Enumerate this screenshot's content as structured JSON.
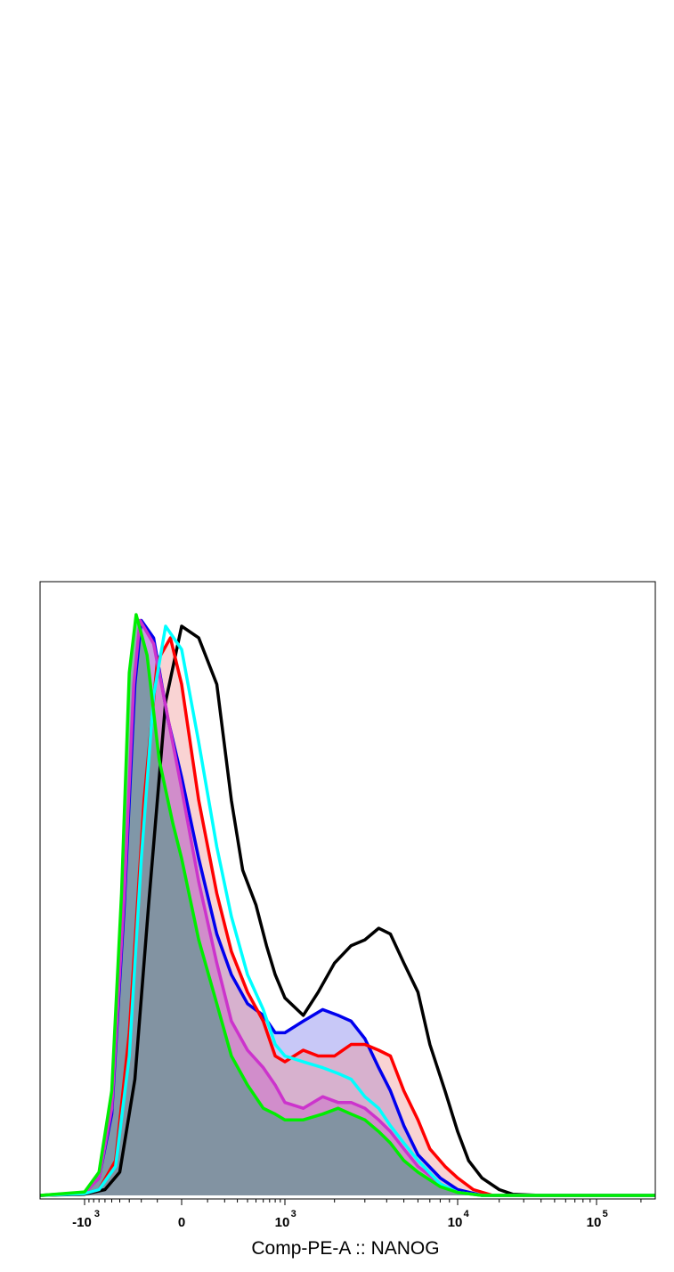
{
  "chart_data": {
    "type": "area",
    "xlabel": "Comp-PE-A :: NANOG",
    "ylabel": "",
    "title": "",
    "x_scale": "biexponential",
    "xlim": [
      -1500,
      250000
    ],
    "ylim": [
      0,
      100
    ],
    "grid": false,
    "legend": "none",
    "x_ticks": [
      {
        "value": -1000,
        "base": "-10",
        "exp": "3"
      },
      {
        "value": 0,
        "base": "0",
        "exp": ""
      },
      {
        "value": 1000,
        "base": "10",
        "exp": "3"
      },
      {
        "value": 10000,
        "base": "10",
        "exp": "4"
      },
      {
        "value": 100000,
        "base": "10",
        "exp": "5"
      }
    ],
    "series": [
      {
        "color": "#000000",
        "fill": "none",
        "points": [
          [
            -1500,
            0
          ],
          [
            -1000,
            0.2
          ],
          [
            -600,
            1
          ],
          [
            -400,
            4
          ],
          [
            -250,
            20
          ],
          [
            -150,
            50
          ],
          [
            -60,
            85
          ],
          [
            0,
            98
          ],
          [
            60,
            96
          ],
          [
            150,
            88
          ],
          [
            250,
            68
          ],
          [
            350,
            56
          ],
          [
            500,
            50
          ],
          [
            650,
            43
          ],
          [
            800,
            38
          ],
          [
            1000,
            34
          ],
          [
            1300,
            31
          ],
          [
            1600,
            35
          ],
          [
            2000,
            40
          ],
          [
            2500,
            43
          ],
          [
            3000,
            44
          ],
          [
            3600,
            46
          ],
          [
            4200,
            45
          ],
          [
            5000,
            40
          ],
          [
            6000,
            35
          ],
          [
            7000,
            26
          ],
          [
            8500,
            18
          ],
          [
            10000,
            11
          ],
          [
            12000,
            6
          ],
          [
            15000,
            3
          ],
          [
            20000,
            1
          ],
          [
            25000,
            0.2
          ],
          [
            40000,
            0
          ],
          [
            250000,
            0
          ]
        ]
      },
      {
        "color": "#0000ee",
        "fill": "rgba(110,110,235,0.38)",
        "points": [
          [
            -1500,
            0
          ],
          [
            -1000,
            0.5
          ],
          [
            -700,
            3
          ],
          [
            -500,
            14
          ],
          [
            -350,
            50
          ],
          [
            -250,
            88
          ],
          [
            -200,
            99
          ],
          [
            -120,
            96
          ],
          [
            -50,
            82
          ],
          [
            0,
            72
          ],
          [
            60,
            58
          ],
          [
            150,
            45
          ],
          [
            250,
            38
          ],
          [
            400,
            33
          ],
          [
            600,
            31
          ],
          [
            800,
            28
          ],
          [
            1000,
            28
          ],
          [
            1300,
            30
          ],
          [
            1700,
            32
          ],
          [
            2100,
            31
          ],
          [
            2500,
            30
          ],
          [
            3000,
            27
          ],
          [
            3600,
            22
          ],
          [
            4200,
            18
          ],
          [
            5000,
            12
          ],
          [
            6000,
            7
          ],
          [
            8000,
            3
          ],
          [
            10000,
            1
          ],
          [
            15000,
            0
          ],
          [
            250000,
            0
          ]
        ]
      },
      {
        "color": "#ff0000",
        "fill": "rgba(240,140,140,0.38)",
        "points": [
          [
            -1500,
            0
          ],
          [
            -1000,
            0.3
          ],
          [
            -700,
            1
          ],
          [
            -450,
            6
          ],
          [
            -300,
            28
          ],
          [
            -180,
            68
          ],
          [
            -100,
            92
          ],
          [
            -40,
            96
          ],
          [
            0,
            88
          ],
          [
            60,
            68
          ],
          [
            150,
            52
          ],
          [
            250,
            42
          ],
          [
            400,
            35
          ],
          [
            600,
            30
          ],
          [
            800,
            24
          ],
          [
            1000,
            23
          ],
          [
            1300,
            25
          ],
          [
            1600,
            24
          ],
          [
            2000,
            24
          ],
          [
            2500,
            26
          ],
          [
            3000,
            26
          ],
          [
            3600,
            25
          ],
          [
            4200,
            24
          ],
          [
            5000,
            18
          ],
          [
            6000,
            13
          ],
          [
            7000,
            8
          ],
          [
            8500,
            5
          ],
          [
            10000,
            3
          ],
          [
            13000,
            1
          ],
          [
            18000,
            0
          ],
          [
            250000,
            0
          ]
        ]
      },
      {
        "color": "#cc33cc",
        "fill": "rgba(200,90,200,0.42)",
        "points": [
          [
            -1500,
            0
          ],
          [
            -1000,
            0.4
          ],
          [
            -700,
            3
          ],
          [
            -500,
            15
          ],
          [
            -350,
            52
          ],
          [
            -260,
            88
          ],
          [
            -210,
            99
          ],
          [
            -120,
            95
          ],
          [
            -40,
            80
          ],
          [
            0,
            70
          ],
          [
            60,
            54
          ],
          [
            150,
            40
          ],
          [
            250,
            30
          ],
          [
            400,
            25
          ],
          [
            600,
            22
          ],
          [
            800,
            19
          ],
          [
            1000,
            16
          ],
          [
            1300,
            15
          ],
          [
            1700,
            17
          ],
          [
            2100,
            16
          ],
          [
            2500,
            16
          ],
          [
            3000,
            15
          ],
          [
            3600,
            13
          ],
          [
            4200,
            11
          ],
          [
            5000,
            8
          ],
          [
            6000,
            5
          ],
          [
            8000,
            2
          ],
          [
            10000,
            0.5
          ],
          [
            15000,
            0
          ],
          [
            250000,
            0
          ]
        ]
      },
      {
        "color": "#00ffff",
        "fill": "none",
        "points": [
          [
            -1500,
            0
          ],
          [
            -1000,
            0.3
          ],
          [
            -700,
            1
          ],
          [
            -450,
            5
          ],
          [
            -300,
            24
          ],
          [
            -200,
            58
          ],
          [
            -120,
            86
          ],
          [
            -60,
            98
          ],
          [
            0,
            94
          ],
          [
            60,
            78
          ],
          [
            150,
            60
          ],
          [
            250,
            48
          ],
          [
            400,
            38
          ],
          [
            600,
            32
          ],
          [
            800,
            26
          ],
          [
            1000,
            24
          ],
          [
            1300,
            23
          ],
          [
            1700,
            22
          ],
          [
            2100,
            21
          ],
          [
            2500,
            20
          ],
          [
            3000,
            17
          ],
          [
            3600,
            15
          ],
          [
            4200,
            12
          ],
          [
            5000,
            9
          ],
          [
            6000,
            6
          ],
          [
            8000,
            2
          ],
          [
            10000,
            0.5
          ],
          [
            15000,
            0
          ],
          [
            250000,
            0
          ]
        ]
      },
      {
        "color": "#00ee00",
        "fill": "rgba(100,150,145,0.72)",
        "points": [
          [
            -1500,
            0
          ],
          [
            -1000,
            0.6
          ],
          [
            -700,
            4
          ],
          [
            -500,
            18
          ],
          [
            -380,
            52
          ],
          [
            -300,
            90
          ],
          [
            -240,
            100
          ],
          [
            -160,
            93
          ],
          [
            -90,
            75
          ],
          [
            -30,
            64
          ],
          [
            0,
            58
          ],
          [
            60,
            44
          ],
          [
            150,
            33
          ],
          [
            250,
            24
          ],
          [
            400,
            19
          ],
          [
            600,
            15
          ],
          [
            800,
            14
          ],
          [
            1000,
            13
          ],
          [
            1300,
            13
          ],
          [
            1700,
            14
          ],
          [
            2100,
            15
          ],
          [
            2500,
            14
          ],
          [
            3000,
            13
          ],
          [
            3600,
            11
          ],
          [
            4200,
            9
          ],
          [
            5000,
            6
          ],
          [
            6000,
            4
          ],
          [
            8000,
            1.5
          ],
          [
            10000,
            0.5
          ],
          [
            15000,
            0
          ],
          [
            250000,
            0
          ]
        ]
      }
    ]
  }
}
